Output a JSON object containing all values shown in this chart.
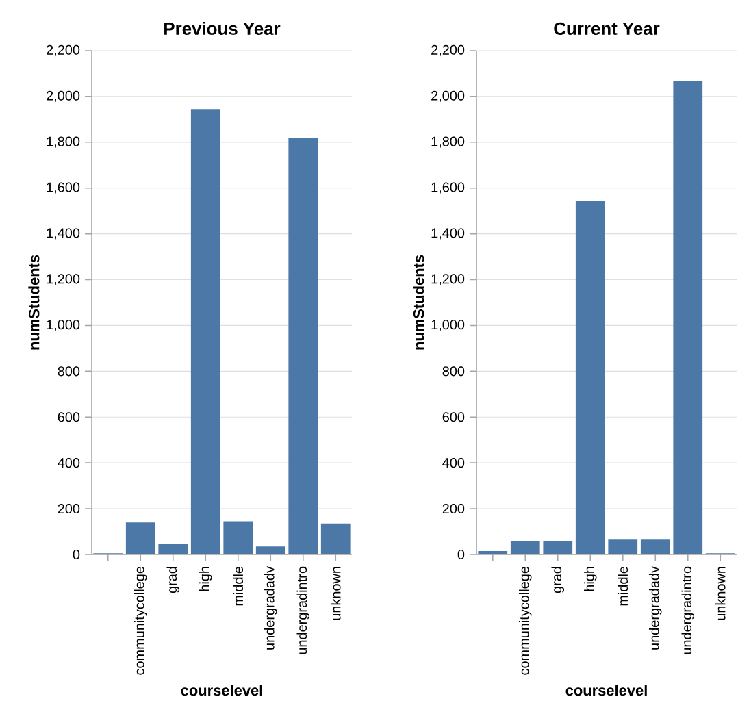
{
  "chart_data": [
    {
      "type": "bar",
      "title": "Previous Year",
      "xlabel": "courselevel",
      "ylabel": "numStudents",
      "categories": [
        null,
        "communitycollege",
        "grad",
        "high",
        "middle",
        "undergradadv",
        "undergradintro",
        "unknown"
      ],
      "values": [
        5,
        140,
        45,
        1945,
        145,
        35,
        1818,
        135
      ],
      "color": "#4c78a8",
      "ylim": [
        0,
        2200
      ],
      "yticks": [
        0,
        200,
        400,
        600,
        800,
        {
          "value": 1000,
          "label": "1,000"
        },
        {
          "value": 1200,
          "label": "1,200"
        },
        {
          "value": 1400,
          "label": "1,400"
        },
        {
          "value": 1600,
          "label": "1,600"
        },
        {
          "value": 1800,
          "label": "1,800"
        },
        {
          "value": 2000,
          "label": "2,000"
        },
        {
          "value": 2200,
          "label": "2,200"
        }
      ],
      "grid": "y"
    },
    {
      "type": "bar",
      "title": "Current Year",
      "xlabel": "courselevel",
      "ylabel": "numStudents",
      "categories": [
        null,
        "communitycollege",
        "grad",
        "high",
        "middle",
        "undergradadv",
        "undergradintro",
        "unknown"
      ],
      "values": [
        15,
        60,
        60,
        1545,
        65,
        65,
        2068,
        5
      ],
      "color": "#4c78a8",
      "ylim": [
        0,
        2200
      ],
      "yticks": [
        0,
        200,
        400,
        600,
        800,
        {
          "value": 1000,
          "label": "1,000"
        },
        {
          "value": 1200,
          "label": "1,200"
        },
        {
          "value": 1400,
          "label": "1,400"
        },
        {
          "value": 1600,
          "label": "1,600"
        },
        {
          "value": 1800,
          "label": "1,800"
        },
        {
          "value": 2000,
          "label": "2,000"
        },
        {
          "value": 2200,
          "label": "2,200"
        }
      ],
      "grid": "y"
    }
  ]
}
